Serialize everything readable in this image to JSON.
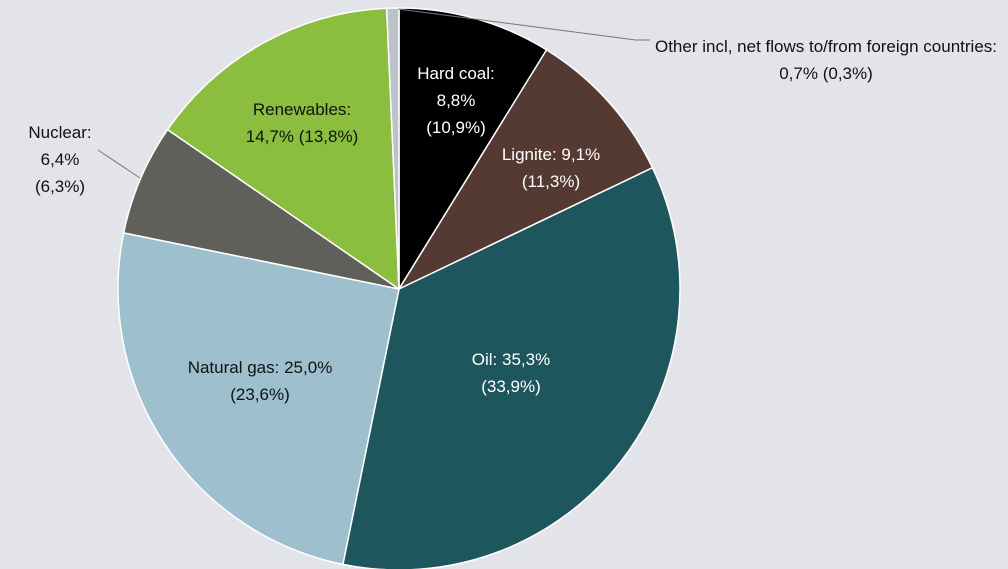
{
  "chart_data": {
    "type": "pie",
    "categories": [
      "Hard coal:",
      "Lignite:",
      "Oil:",
      "Natural gas:",
      "Nuclear:",
      "Renewables:",
      "Other incl, net flows to/from foreign countries:"
    ],
    "values": [
      8.8,
      9.1,
      35.3,
      25.0,
      6.4,
      14.7,
      0.7
    ],
    "value_labels": [
      "8,8%",
      "9,1%",
      "35,3%",
      "25,0%",
      "6,4%",
      "14,7%",
      "0,7%"
    ],
    "prior_values": [
      10.9,
      11.3,
      33.9,
      23.6,
      6.3,
      13.8,
      0.3
    ],
    "prior_value_labels": [
      "(10,9%)",
      "(11,3%)",
      "(33,9%)",
      "(23,6%)",
      "(6,3%)",
      "(13,8%)",
      "(0,3%)"
    ],
    "colors": [
      "#000000",
      "#553a33",
      "#1e565e",
      "#9dbfce",
      "#5f605a",
      "#8bbd3e",
      "#b9c3c9"
    ]
  }
}
